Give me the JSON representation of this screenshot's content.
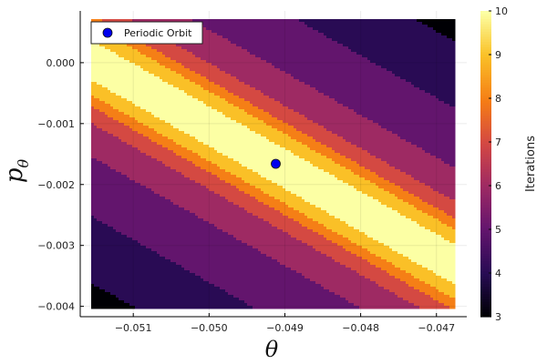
{
  "chart_data": {
    "type": "heatmap",
    "title": "",
    "xlabel": "θ",
    "ylabel": "p",
    "ylabel_sub": "θ",
    "xlim": [
      -0.0517,
      -0.0466
    ],
    "ylim": [
      -0.00417,
      0.00085
    ],
    "xticks": [
      -0.051,
      -0.05,
      -0.049,
      -0.048,
      -0.047
    ],
    "xtick_labels": [
      "−0.051",
      "−0.050",
      "−0.049",
      "−0.048",
      "−0.047"
    ],
    "yticks": [
      0.0,
      -0.001,
      -0.002,
      -0.003,
      -0.004
    ],
    "ytick_labels": [
      "0.000",
      "−0.001",
      "−0.002",
      "−0.003",
      "−0.004"
    ],
    "grid": true,
    "colorscale": "inferno",
    "colorbar": {
      "title": "Iterations",
      "min": 3,
      "max": 10,
      "ticks": [
        3,
        4,
        5,
        6,
        7,
        8,
        9,
        10
      ],
      "tick_labels": [
        "3",
        "4",
        "5",
        "6",
        "7",
        "8",
        "9",
        "10"
      ]
    },
    "field": {
      "description_of_values": "Iterations as a function of signed distance from the ridge line through the periodic orbit",
      "ridge_center": [
        -0.04912,
        -0.00166
      ],
      "ridge_slope": -0.7,
      "levels": [
        {
          "max_distance": 0.00027,
          "iterations": 10
        },
        {
          "max_distance": 0.00047,
          "iterations": 9
        },
        {
          "max_distance": 0.00062,
          "iterations": 8
        },
        {
          "max_distance": 0.00085,
          "iterations": 7
        },
        {
          "max_distance": 0.0013,
          "iterations": 6
        },
        {
          "max_distance": 0.0021,
          "iterations": 5
        },
        {
          "max_distance": 0.003,
          "iterations": 4
        },
        {
          "max_distance": 99,
          "iterations": 3
        }
      ]
    },
    "series": [
      {
        "name": "Periodic Orbit",
        "type": "scatter",
        "color": "#0000ee",
        "points": [
          {
            "x": -0.04912,
            "y": -0.00166
          }
        ]
      }
    ],
    "legend": {
      "position": "top-left",
      "entries": [
        "Periodic Orbit"
      ]
    }
  }
}
